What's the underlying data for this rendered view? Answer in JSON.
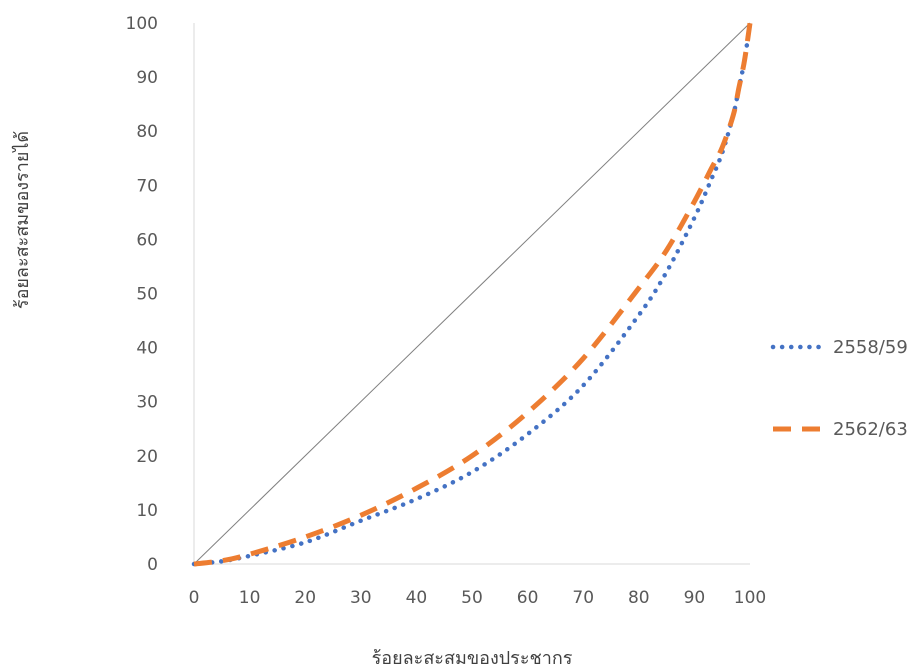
{
  "chart_data": {
    "type": "line",
    "title": "",
    "xlabel": "ร้อยละสะสมของประชากร",
    "ylabel": "ร้อยละสะสมของรายได้",
    "xlim": [
      0,
      100
    ],
    "ylim": [
      0,
      100
    ],
    "x_ticks": [
      0,
      10,
      20,
      30,
      40,
      50,
      60,
      70,
      80,
      90,
      100
    ],
    "y_ticks": [
      0,
      10,
      20,
      30,
      40,
      50,
      60,
      70,
      80,
      90,
      100
    ],
    "grid": false,
    "legend_position": "right",
    "equality_line": {
      "x": [
        0,
        100
      ],
      "y": [
        0,
        100
      ],
      "color": "#808080"
    },
    "series": [
      {
        "name": "2558/59",
        "style": "dotted",
        "color": "#4472C4",
        "x": [
          0,
          5,
          10,
          20,
          30,
          40,
          50,
          60,
          70,
          80,
          85,
          90,
          93,
          95,
          97,
          98,
          99,
          100
        ],
        "y": [
          0,
          0.5,
          1.5,
          4,
          8,
          12,
          17,
          24,
          33,
          46,
          54,
          64,
          71,
          76,
          83,
          88,
          93,
          100
        ]
      },
      {
        "name": "2562/63",
        "style": "dashed",
        "color": "#ED7D31",
        "x": [
          0,
          5,
          10,
          20,
          30,
          40,
          50,
          60,
          70,
          80,
          85,
          90,
          93,
          95,
          97,
          98,
          99,
          100
        ],
        "y": [
          0,
          0.6,
          1.8,
          5,
          9,
          14,
          20,
          28,
          38,
          51,
          58,
          67,
          73,
          77,
          83,
          88,
          93,
          100
        ]
      }
    ]
  }
}
